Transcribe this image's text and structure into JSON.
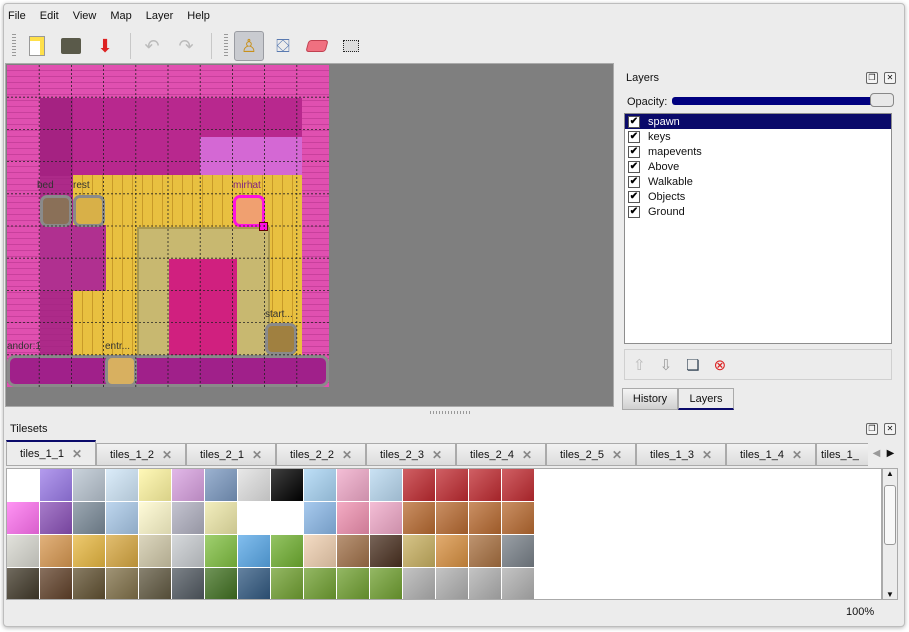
{
  "menu": [
    "File",
    "Edit",
    "View",
    "Map",
    "Layer",
    "Help"
  ],
  "toolbar": {
    "icons": [
      "new-file-icon",
      "open-folder-icon",
      "save-icon",
      "undo-icon",
      "redo-icon",
      "stamp-brush-icon",
      "bucket-fill-icon",
      "eraser-icon",
      "rect-select-icon"
    ],
    "active": "stamp-brush-icon"
  },
  "map": {
    "objects": [
      {
        "label": "bed"
      },
      {
        "label": "rest"
      },
      {
        "label": "mirhat"
      },
      {
        "label": "start..."
      },
      {
        "label": "andor:1"
      },
      {
        "label": "entr..."
      }
    ],
    "colors": {
      "wall": "#e050b0",
      "floor": "#e8c040",
      "rug": "#c8b870",
      "table": "#d0207f",
      "bar": "#a0208a",
      "selected_object": "#ff10e0"
    }
  },
  "layers_panel": {
    "title": "Layers",
    "opacity_label": "Opacity:",
    "opacity": 1.0,
    "layers": [
      {
        "name": "spawn",
        "visible": true,
        "selected": true
      },
      {
        "name": "keys",
        "visible": true
      },
      {
        "name": "mapevents",
        "visible": true
      },
      {
        "name": "Above",
        "visible": true
      },
      {
        "name": "Walkable",
        "visible": true
      },
      {
        "name": "Objects",
        "visible": true
      },
      {
        "name": "Ground",
        "visible": true
      }
    ],
    "tabs": [
      "History",
      "Layers"
    ],
    "active_tab": "Layers"
  },
  "tilesets": {
    "title": "Tilesets",
    "tabs": [
      "tiles_1_1",
      "tiles_1_2",
      "tiles_2_1",
      "tiles_2_2",
      "tiles_2_3",
      "tiles_2_4",
      "tiles_2_5",
      "tiles_1_3",
      "tiles_1_4",
      "tiles_1_"
    ],
    "active_tab": "tiles_1_1",
    "tile_colors": [
      [
        "#ffffff",
        "#9a7ae8",
        "#b8c4d0",
        "#cfe6f8",
        "#fff6a0",
        "#d8a0e0",
        "#7a98c0",
        "#e0e0e0",
        "#000000",
        "#a8d4f4",
        "#f0a8c8",
        "#b8d8f0",
        "#c02a30",
        "#c02a30",
        "#c02a30",
        "#c02a30"
      ],
      [
        "#ff70f0",
        "#8a50b8",
        "#7a8a98",
        "#a8c8e8",
        "#fffacc",
        "#b0b0c0",
        "#eee8a8",
        "#ffffff",
        "#ffffff",
        "#8ab8e8",
        "#f090b0",
        "#f0a8c8",
        "#b86a30",
        "#b86a30",
        "#b86a30",
        "#b86a30"
      ],
      [
        "#d8d8d0",
        "#d89850",
        "#e8b840",
        "#d8a840",
        "#d0c8a8",
        "#c8ccd0",
        "#80c040",
        "#58a8e8",
        "#70b030",
        "#f0d0b0",
        "#a07048",
        "#4a3020",
        "#c8b060",
        "#d89040",
        "#a87040",
        "#788088"
      ],
      [
        "#403828",
        "#604028",
        "#605030",
        "#807048",
        "#605840",
        "#505860",
        "#407020",
        "#305880",
        "#70a030",
        "#70a030",
        "#70a030",
        "#70a030",
        "#b0b0b0",
        "#b0b0b0",
        "#b0b0b0",
        "#b0b0b0"
      ]
    ]
  },
  "status": {
    "zoom": "100%"
  }
}
